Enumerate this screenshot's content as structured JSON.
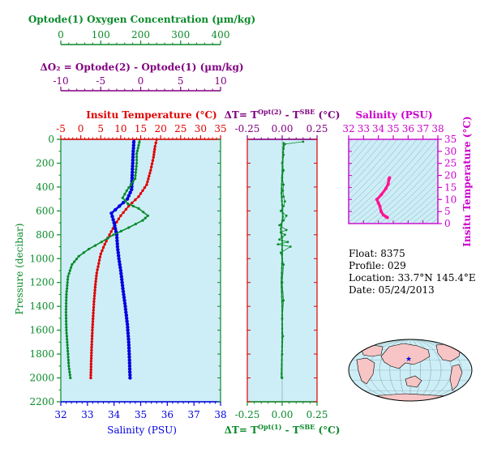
{
  "colors": {
    "oxygen": "#0a8a2a",
    "delta": "#800080",
    "temperature": "#e00000",
    "salinity": "#0000e0",
    "ts_axis": "#cc00cc",
    "panel_bg": "#cdeef7",
    "ts_line": "#ff1493",
    "land": "#f7c5c5"
  },
  "info": {
    "float": "Float:  8375",
    "profile": "Profile:  029",
    "location": "Location:  33.7°N  145.4°E",
    "date": "Date:  05/24/2013"
  },
  "chart_data": [
    {
      "type": "line",
      "panel": "profiles",
      "ylabel": "Pressure (decibar)",
      "ylim": [
        0,
        2200
      ],
      "yticks": [
        0,
        200,
        400,
        600,
        800,
        1000,
        1200,
        1400,
        1600,
        1800,
        2000,
        2200
      ],
      "axes": {
        "oxygen": {
          "label": "Optode(1) Oxygen Concentration (µm/kg)",
          "range": [
            0,
            400
          ],
          "ticks": [
            "0",
            "100",
            "200",
            "300",
            "400"
          ]
        },
        "delta_o2": {
          "label": "ΔO₂ = Optode(2) - Optode(1)     (µm/kg)",
          "range": [
            -10,
            10
          ],
          "ticks": [
            "-10",
            "-5",
            "0",
            "5",
            "10"
          ]
        },
        "temperature": {
          "label": "Insitu Temperature (°C)",
          "range": [
            -5,
            35
          ],
          "ticks": [
            "-5",
            "0",
            "5",
            "10",
            "15",
            "20",
            "25",
            "30",
            "35"
          ]
        },
        "salinity": {
          "label": "Salinity (PSU)",
          "range": [
            32,
            38
          ],
          "ticks": [
            "32",
            "33",
            "34",
            "35",
            "36",
            "37",
            "38"
          ]
        }
      },
      "series": [
        {
          "key": "temperature",
          "x": [
            19,
            18.6,
            18.2,
            17.5,
            16.5,
            14.5,
            12,
            10,
            8.5,
            7.2,
            6,
            5,
            4.5,
            4,
            3.6,
            3.3,
            3.1,
            2.9,
            2.75,
            2.6,
            2.5
          ],
          "y": [
            0,
            60,
            150,
            260,
            380,
            480,
            560,
            640,
            720,
            800,
            880,
            960,
            1040,
            1120,
            1240,
            1360,
            1480,
            1600,
            1720,
            1860,
            2000
          ]
        },
        {
          "key": "salinity",
          "x": [
            34.75,
            34.72,
            34.7,
            34.68,
            34.66,
            34.5,
            34.2,
            33.9,
            34.0,
            34.1,
            34.13,
            34.18,
            34.25,
            34.33,
            34.42,
            34.5,
            34.55,
            34.58,
            34.6
          ],
          "y": [
            0,
            100,
            200,
            300,
            420,
            500,
            560,
            620,
            700,
            800,
            900,
            1000,
            1100,
            1250,
            1400,
            1550,
            1700,
            1850,
            2000
          ]
        },
        {
          "key": "oxygen",
          "x": [
            198,
            195,
            190,
            190,
            186,
            165,
            155,
            168,
            195,
            218,
            205,
            170,
            132,
            102,
            70,
            45,
            28,
            18,
            14,
            13,
            14,
            17,
            20,
            24
          ],
          "y": [
            0,
            50,
            120,
            200,
            330,
            430,
            490,
            540,
            580,
            640,
            680,
            740,
            800,
            860,
            920,
            980,
            1050,
            1150,
            1300,
            1450,
            1600,
            1750,
            1900,
            2000
          ]
        }
      ]
    },
    {
      "type": "scatter",
      "panel": "delta_t",
      "top_label": "ΔT= T^Opt(2) - T^SBE (°C)",
      "bottom_label": "ΔT= T^Opt(1) - T^SBE (°C)",
      "xlim": [
        -0.25,
        0.25
      ],
      "ylim": [
        0,
        2200
      ],
      "ticks": [
        "-0.25",
        "0.00",
        "0.25"
      ],
      "series": [
        {
          "name": "Optode(2)",
          "x": [
            0.15,
            0.02,
            0.01,
            0.01,
            0.0,
            0.01,
            0.0,
            0.01,
            0.005,
            0.01,
            0.02,
            0.01,
            -0.01,
            0.03,
            0.01,
            -0.02,
            0.03,
            -0.01,
            0.02,
            0.0,
            -0.02,
            0.04,
            -0.03,
            0.06,
            -0.01,
            0.01,
            0.0,
            0.01,
            0.0,
            0.005,
            0.0,
            0.0
          ],
          "y": [
            20,
            40,
            80,
            130,
            200,
            260,
            320,
            380,
            430,
            480,
            520,
            560,
            600,
            640,
            680,
            720,
            760,
            780,
            800,
            820,
            840,
            860,
            880,
            900,
            950,
            1050,
            1200,
            1350,
            1500,
            1650,
            1800,
            2000
          ]
        },
        {
          "name": "Optode(1)",
          "x": [
            0.01,
            0.005,
            0.0,
            -0.005,
            0.0,
            0.005,
            -0.01,
            0.0,
            0.0,
            -0.005,
            0.0,
            0.0,
            -0.005
          ],
          "y": [
            30,
            150,
            300,
            450,
            550,
            650,
            750,
            850,
            1000,
            1200,
            1400,
            1700,
            2000
          ]
        }
      ]
    },
    {
      "type": "line",
      "panel": "ts_diagram",
      "xlabel": "Salinity (PSU)",
      "ylabel": "Insitu Temperature (°C)",
      "xlim": [
        32,
        38
      ],
      "ylim": [
        0,
        35
      ],
      "xticks": [
        "32",
        "33",
        "34",
        "35",
        "36",
        "37",
        "38"
      ],
      "yticks": [
        "0",
        "5",
        "10",
        "15",
        "20",
        "25",
        "30",
        "35"
      ],
      "series": [
        {
          "salinity": [
            34.75,
            34.72,
            34.7,
            34.66,
            34.5,
            34.2,
            33.9,
            34.0,
            34.1,
            34.18,
            34.33,
            34.5,
            34.6
          ],
          "temperature": [
            19,
            18.6,
            18.2,
            16.5,
            14.5,
            12,
            10,
            8.5,
            7.2,
            5,
            3.6,
            2.9,
            2.5
          ]
        }
      ]
    },
    {
      "type": "map",
      "panel": "location_map",
      "marker": {
        "lat": 33.7,
        "lon": 145.4
      }
    }
  ]
}
